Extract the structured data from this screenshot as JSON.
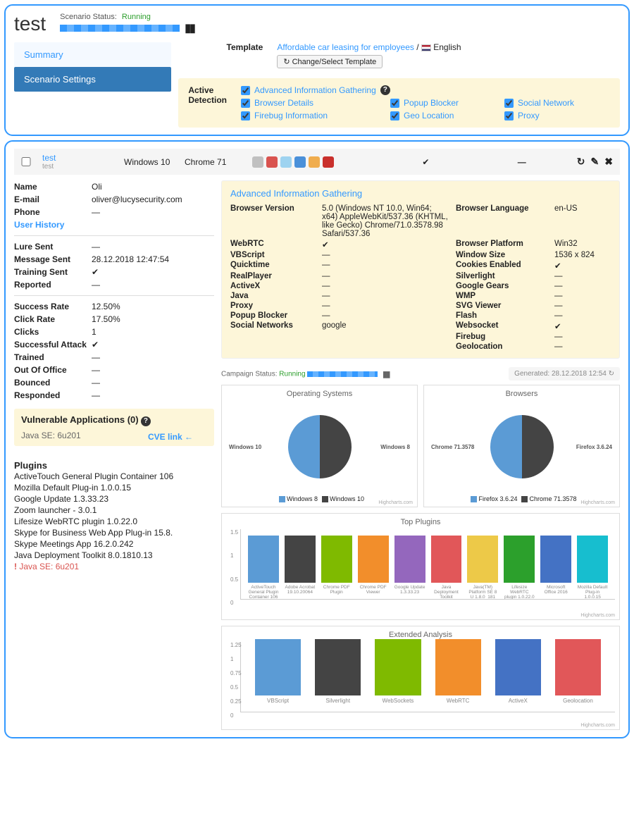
{
  "header": {
    "title": "test",
    "scenario_status_label": "Scenario Status:",
    "scenario_status_value": "Running"
  },
  "nav": {
    "summary": "Summary",
    "settings": "Scenario Settings"
  },
  "template": {
    "label": "Template",
    "name": "Affordable car leasing for employees",
    "lang": "English",
    "change_btn": "↻ Change/Select Template"
  },
  "active_detection": {
    "label": "Active Detection",
    "items": [
      "Advanced Information Gathering",
      "Browser Details",
      "Popup Blocker",
      "Social Network",
      "Firebug Information",
      "Geo Location",
      "Proxy"
    ]
  },
  "row": {
    "name": "test",
    "sub": "test",
    "os": "Windows 10",
    "browser": "Chrome 71",
    "icon_colors": [
      "#c0c0c0",
      "#d9534f",
      "#9ed3f0",
      "#4a90d9",
      "#f0ad4e",
      "#c9302c"
    ]
  },
  "details": {
    "Name": "Oli",
    "E-mail": "oliver@lucysecurity.com",
    "Phone": "—",
    "user_history": "User History",
    "Lure Sent": "—",
    "Message Sent": "28.12.2018 12:47:54",
    "Training Sent": "✔",
    "Reported": "—",
    "Success Rate": "12.50%",
    "Click Rate": "17.50%",
    "Clicks": "1",
    "Successful Attack": "✔",
    "Trained": "—",
    "Out Of Office": "—",
    "Bounced": "—",
    "Responded": "—"
  },
  "vuln": {
    "title": "Vulnerable Applications (0)",
    "item": "Java SE: 6u201",
    "cve": "CVE link ←"
  },
  "plugins": {
    "title": "Plugins",
    "list": [
      "ActiveTouch General Plugin Container 106",
      "Mozilla Default Plug-in 1.0.0.15",
      "Google Update 1.3.33.23",
      "Zoom launcher - 3.0.1",
      "Lifesize WebRTC plugin 1.0.22.0",
      "Skype for Business Web App Plug-in 15.8.",
      "Skype Meetings App 16.2.0.242",
      "Java Deployment Toolkit 8.0.1810.13"
    ],
    "vuln": "Java SE: 6u201"
  },
  "aig": {
    "title": "Advanced Information Gathering",
    "left": [
      [
        "Browser Version",
        "5.0 (Windows NT 10.0, Win64; x64) AppleWebKit/537.36 (KHTML, like Gecko) Chrome/71.0.3578.98 Safari/537.36"
      ],
      [
        "WebRTC",
        "✔"
      ],
      [
        "VBScript",
        "—"
      ],
      [
        "Quicktime",
        "—"
      ],
      [
        "RealPlayer",
        "—"
      ],
      [
        "ActiveX",
        "—"
      ],
      [
        "Java",
        "—"
      ],
      [
        "Proxy",
        "—"
      ],
      [
        "Popup Blocker",
        "—"
      ],
      [
        "Social Networks",
        "google"
      ]
    ],
    "right": [
      [
        "Browser Language",
        "en-US"
      ],
      [
        "Browser Platform",
        "Win32"
      ],
      [
        "Window Size",
        "1536 x 824"
      ],
      [
        "Cookies Enabled",
        "✔"
      ],
      [
        "Silverlight",
        "—"
      ],
      [
        "Google Gears",
        "—"
      ],
      [
        "WMP",
        "—"
      ],
      [
        "SVG Viewer",
        "—"
      ],
      [
        "Flash",
        "—"
      ],
      [
        "Websocket",
        "✔"
      ],
      [
        "Firebug",
        "—"
      ],
      [
        "Geolocation",
        "—"
      ]
    ]
  },
  "campaign": {
    "label": "Campaign Status:",
    "val": "Running",
    "generated": "Generated: 28.12.2018 12:54 ↻"
  },
  "charts": {
    "colors": [
      "#5b9bd5",
      "#444444",
      "#7fba00",
      "#f28e2b",
      "#e15759",
      "#edc948",
      "#2ca02c",
      "#17becf",
      "#4472c4",
      "#9e9e9e"
    ],
    "os": {
      "title": "Operating Systems",
      "labels": [
        "Windows 8",
        "Windows 10"
      ],
      "values": [
        50,
        50
      ],
      "slice_colors": [
        "#5b9bd5",
        "#444444"
      ],
      "left_label": "Windows 10",
      "right_label": "Windows 8"
    },
    "browsers": {
      "title": "Browsers",
      "labels": [
        "Firefox 3.6.24",
        "Chrome 71.3578"
      ],
      "values": [
        50,
        50
      ],
      "slice_colors": [
        "#5b9bd5",
        "#444444"
      ],
      "left_label": "Chrome 71.3578",
      "right_label": "Firefox 3.6.24"
    },
    "top_plugins": {
      "title": "Top Plugins",
      "ylim": [
        0,
        1.5
      ],
      "ticks": [
        0,
        0.5,
        1,
        1.5
      ],
      "bars": [
        {
          "label": "ActiveTouch General Plugin Container 106",
          "v": 1,
          "c": "#5b9bd5"
        },
        {
          "label": "Adobe Acrobat 19.10.20064",
          "v": 1,
          "c": "#444444"
        },
        {
          "label": "Chrome PDF Plugin",
          "v": 1,
          "c": "#7fba00"
        },
        {
          "label": "Chrome PDF Viewer",
          "v": 1,
          "c": "#f28e2b"
        },
        {
          "label": "Google Update 1.3.33.23",
          "v": 1,
          "c": "#9467bd"
        },
        {
          "label": "Java Deployment Toolkit 8.0.1810.13",
          "v": 1,
          "c": "#e15759"
        },
        {
          "label": "Java(TM) Platform SE 8 U 1.8.0_181",
          "v": 1,
          "c": "#edc948"
        },
        {
          "label": "Lifesize WebRTC plugin 1.0.22.0",
          "v": 1,
          "c": "#2ca02c"
        },
        {
          "label": "Microsoft Office 2016",
          "v": 1,
          "c": "#4472c4"
        },
        {
          "label": "Mozilla Default Plug-in 1.0.0.15",
          "v": 1,
          "c": "#17becf"
        }
      ]
    },
    "extended": {
      "title": "Extended Analysis",
      "ylim": [
        0,
        1.25
      ],
      "ticks": [
        0,
        0.25,
        0.5,
        0.75,
        1,
        1.25
      ],
      "bars": [
        {
          "label": "VBScript",
          "v": 1,
          "c": "#5b9bd5"
        },
        {
          "label": "Silverlight",
          "v": 1,
          "c": "#444444"
        },
        {
          "label": "WebSockets",
          "v": 1,
          "c": "#7fba00"
        },
        {
          "label": "WebRTC",
          "v": 1,
          "c": "#f28e2b"
        },
        {
          "label": "ActiveX",
          "v": 1,
          "c": "#4472c4"
        },
        {
          "label": "Geolocation",
          "v": 1,
          "c": "#e15759"
        }
      ]
    },
    "credit": "Highcharts.com"
  }
}
